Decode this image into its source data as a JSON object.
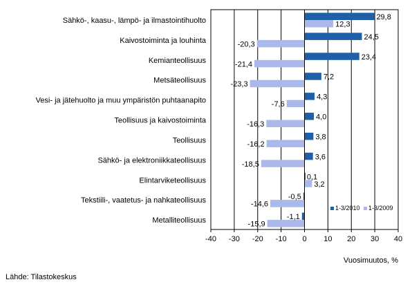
{
  "chart_data": {
    "type": "bar",
    "orientation": "horizontal",
    "categories": [
      "Sähkö-, kaasu-, lämpö- ja ilmastointihuolto",
      "Kaivostoiminta ja louhinta",
      "Kemianteollisuus",
      "Metsäteollisuus",
      "Vesi- ja jätehuolto ja muu ympäristön puhtaanapito",
      "Teollisuus ja kaivostoiminta",
      "Teollisuus",
      "Sähkö- ja elektroniikkateollisuus",
      "Elintarviketeollisuus",
      "Tekstiili-, vaatetus- ja nahkateollisuus",
      "Metalliteollisuus"
    ],
    "series": [
      {
        "name": "1-3/2010",
        "color": "#1f5fa8",
        "values": [
          29.8,
          24.5,
          23.4,
          7.2,
          4.3,
          4.0,
          3.8,
          3.6,
          0.1,
          -0.5,
          -1.1
        ],
        "labels": [
          "29,8",
          "24,5",
          "23,4",
          "7,2",
          "4,3",
          "4,0",
          "3,8",
          "3,6",
          "0,1",
          "-0,5",
          "-1,1"
        ]
      },
      {
        "name": "1-3/2009",
        "color": "#aab8ea",
        "values": [
          12.3,
          -20.3,
          -21.4,
          -23.3,
          -7.6,
          -16.3,
          -16.2,
          -18.5,
          3.2,
          -14.6,
          -15.9
        ],
        "labels": [
          "12,3",
          "-20,3",
          "-21,4",
          "-23,3",
          "-7,6",
          "-16,3",
          "-16,2",
          "-18,5",
          "3,2",
          "-14,6",
          "-15,9"
        ]
      }
    ],
    "xlim": [
      -40,
      40
    ],
    "xticks": [
      -40,
      -30,
      -20,
      -10,
      0,
      10,
      20,
      30,
      40
    ],
    "xlabel": "Vuosimuutos, %",
    "grid": true,
    "legend_position": "bottom-right"
  },
  "source": "Lähde: Tilastokeskus"
}
